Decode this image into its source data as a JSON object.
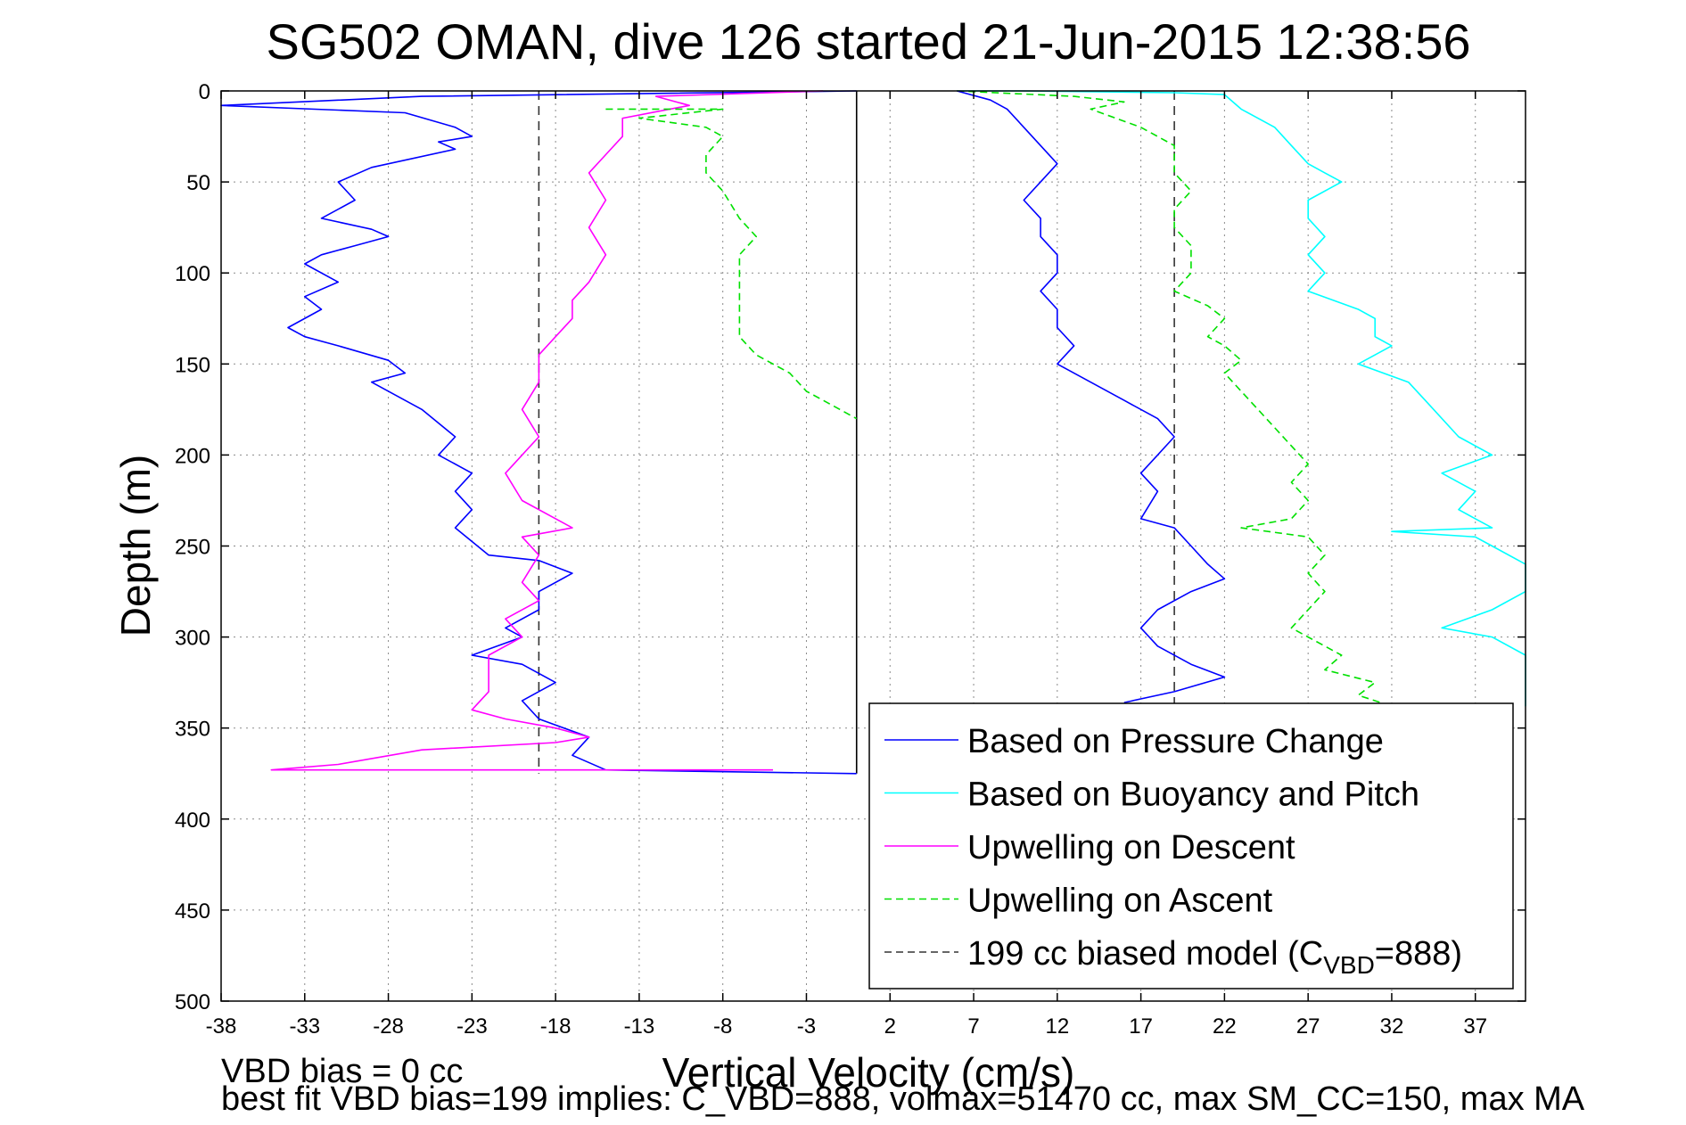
{
  "chart_data": {
    "type": "line",
    "title": "SG502 OMAN, dive 126 started 21-Jun-2015 12:38:56",
    "xlabel": "Vertical Velocity (cm/s)",
    "ylabel": "Depth (m)",
    "xlim": [
      -38,
      40
    ],
    "ylim": [
      500,
      0
    ],
    "y_axis_direction": "reversed",
    "xticks": [
      -38,
      -33,
      -28,
      -23,
      -18,
      -13,
      -8,
      -3,
      2,
      7,
      12,
      17,
      22,
      27,
      32,
      37
    ],
    "xtick_labels": [
      "-38",
      "-33",
      "-28",
      "-23",
      "-18",
      "-13",
      "-8",
      "-3",
      "2",
      "7",
      "12",
      "17",
      "22",
      "27",
      "32",
      "37"
    ],
    "yticks": [
      0,
      50,
      100,
      150,
      200,
      250,
      300,
      350,
      400,
      450,
      500
    ],
    "ytick_labels": [
      "0",
      "50",
      "100",
      "150",
      "200",
      "250",
      "300",
      "350",
      "400",
      "450",
      "500"
    ],
    "grid": true,
    "legend_position": "bottom-right",
    "reference_lines": [
      {
        "kind": "vertical",
        "x": 0,
        "style": "solid",
        "color": "#000000",
        "ymax": 375
      },
      {
        "kind": "vertical",
        "x": -19,
        "style": "dashed",
        "color": "#333333",
        "ymax": 375
      },
      {
        "kind": "vertical",
        "x": 19,
        "style": "dashed",
        "color": "#333333",
        "ymax": 375
      }
    ],
    "series": [
      {
        "name": "Based on Pressure Change",
        "color": "#0000ff",
        "style": "solid",
        "points": [
          [
            0,
            0
          ],
          [
            -26,
            3
          ],
          [
            -38,
            8
          ],
          [
            -27,
            12
          ],
          [
            -24,
            20
          ],
          [
            -23,
            25
          ],
          [
            -25,
            28
          ],
          [
            -24,
            32
          ],
          [
            -29,
            42
          ],
          [
            -31,
            50
          ],
          [
            -30,
            60
          ],
          [
            -32,
            70
          ],
          [
            -29,
            76
          ],
          [
            -28,
            80
          ],
          [
            -30,
            85
          ],
          [
            -32,
            90
          ],
          [
            -33,
            95
          ],
          [
            -31,
            105
          ],
          [
            -33,
            113
          ],
          [
            -32,
            120
          ],
          [
            -34,
            130
          ],
          [
            -33,
            135
          ],
          [
            -31,
            140
          ],
          [
            -28,
            148
          ],
          [
            -27,
            155
          ],
          [
            -29,
            160
          ],
          [
            -26,
            175
          ],
          [
            -24,
            190
          ],
          [
            -25,
            200
          ],
          [
            -23,
            210
          ],
          [
            -24,
            220
          ],
          [
            -23,
            230
          ],
          [
            -24,
            240
          ],
          [
            -22,
            255
          ],
          [
            -19,
            258
          ],
          [
            -17,
            265
          ],
          [
            -19,
            275
          ],
          [
            -19,
            285
          ],
          [
            -21,
            295
          ],
          [
            -20,
            300
          ],
          [
            -23,
            310
          ],
          [
            -20,
            315
          ],
          [
            -18,
            325
          ],
          [
            -20,
            335
          ],
          [
            -19,
            345
          ],
          [
            -16,
            355
          ],
          [
            -17,
            365
          ],
          [
            -15,
            373
          ],
          [
            0,
            375
          ]
        ]
      },
      {
        "name": "Based on Buoyancy and Pitch",
        "color": "#00ffff",
        "style": "solid",
        "points": [
          [
            6,
            0
          ],
          [
            10,
            0
          ],
          [
            19,
            1
          ],
          [
            22,
            2
          ],
          [
            23,
            10
          ],
          [
            25,
            20
          ],
          [
            26,
            30
          ],
          [
            27,
            40
          ],
          [
            28,
            45
          ],
          [
            29,
            50
          ],
          [
            27,
            60
          ],
          [
            27,
            70
          ],
          [
            28,
            80
          ],
          [
            27,
            90
          ],
          [
            28,
            100
          ],
          [
            27,
            110
          ],
          [
            30,
            120
          ],
          [
            31,
            125
          ],
          [
            31,
            135
          ],
          [
            32,
            140
          ],
          [
            30,
            150
          ],
          [
            33,
            160
          ],
          [
            34,
            170
          ],
          [
            36,
            190
          ],
          [
            38,
            200
          ],
          [
            35,
            210
          ],
          [
            37,
            220
          ],
          [
            36,
            230
          ],
          [
            37,
            235
          ],
          [
            38,
            240
          ],
          [
            32,
            242
          ],
          [
            37,
            245
          ],
          [
            38,
            250
          ],
          [
            40,
            260
          ],
          [
            40,
            275
          ],
          [
            38,
            285
          ],
          [
            35,
            295
          ],
          [
            38,
            300
          ],
          [
            40,
            310
          ],
          [
            40,
            325
          ],
          [
            40,
            338
          ]
        ]
      },
      {
        "name": "Upwelling on Descent",
        "color": "#ff00ff",
        "style": "solid",
        "points": [
          [
            -2,
            0
          ],
          [
            -12,
            3
          ],
          [
            -10,
            8
          ],
          [
            -14,
            15
          ],
          [
            -14,
            25
          ],
          [
            -15,
            35
          ],
          [
            -16,
            45
          ],
          [
            -15,
            60
          ],
          [
            -16,
            75
          ],
          [
            -15,
            90
          ],
          [
            -16,
            105
          ],
          [
            -17,
            115
          ],
          [
            -17,
            125
          ],
          [
            -18,
            135
          ],
          [
            -19,
            145
          ],
          [
            -19,
            160
          ],
          [
            -20,
            175
          ],
          [
            -19,
            190
          ],
          [
            -20,
            200
          ],
          [
            -21,
            210
          ],
          [
            -20,
            225
          ],
          [
            -17,
            240
          ],
          [
            -20,
            245
          ],
          [
            -19,
            255
          ],
          [
            -20,
            270
          ],
          [
            -19,
            280
          ],
          [
            -21,
            290
          ],
          [
            -20,
            300
          ],
          [
            -22,
            310
          ],
          [
            -22,
            320
          ],
          [
            -22,
            330
          ],
          [
            -23,
            340
          ],
          [
            -21,
            345
          ],
          [
            -18,
            350
          ],
          [
            -16,
            355
          ],
          [
            -18,
            358
          ],
          [
            -26,
            362
          ],
          [
            -31,
            370
          ],
          [
            -35,
            373
          ],
          [
            -5,
            373
          ]
        ]
      },
      {
        "name": "Upwelling on Ascent",
        "color": "#00e000",
        "style": "dashed",
        "points": [
          [
            -15,
            10
          ],
          [
            -8,
            10
          ],
          [
            -13,
            15
          ],
          [
            -9,
            20
          ],
          [
            -8,
            25
          ],
          [
            -9,
            35
          ],
          [
            -9,
            45
          ],
          [
            -8,
            55
          ],
          [
            -7,
            70
          ],
          [
            -6,
            80
          ],
          [
            -7,
            90
          ],
          [
            -7,
            100
          ],
          [
            -7,
            115
          ],
          [
            -7,
            125
          ],
          [
            -7,
            135
          ],
          [
            -6,
            145
          ],
          [
            -4,
            155
          ],
          [
            -3,
            165
          ],
          [
            -1,
            175
          ],
          [
            0,
            180
          ]
        ]
      },
      {
        "name": "Upwelling on Ascent",
        "color": "#00e000",
        "style": "dashed",
        "points": [
          [
            6,
            0
          ],
          [
            13,
            3
          ],
          [
            16,
            6
          ],
          [
            14,
            10
          ],
          [
            17,
            20
          ],
          [
            19,
            30
          ],
          [
            19,
            45
          ],
          [
            20,
            55
          ],
          [
            19,
            65
          ],
          [
            19,
            75
          ],
          [
            20,
            85
          ],
          [
            20,
            100
          ],
          [
            19,
            110
          ],
          [
            21,
            118
          ],
          [
            22,
            125
          ],
          [
            21,
            135
          ],
          [
            22,
            140
          ],
          [
            23,
            148
          ],
          [
            22,
            155
          ],
          [
            23,
            165
          ],
          [
            24,
            175
          ],
          [
            25,
            185
          ],
          [
            26,
            195
          ],
          [
            27,
            205
          ],
          [
            26,
            215
          ],
          [
            27,
            225
          ],
          [
            26,
            235
          ],
          [
            23,
            240
          ],
          [
            27,
            245
          ],
          [
            28,
            255
          ],
          [
            27,
            265
          ],
          [
            28,
            275
          ],
          [
            27,
            285
          ],
          [
            26,
            295
          ],
          [
            28,
            305
          ],
          [
            29,
            310
          ],
          [
            28,
            318
          ],
          [
            31,
            325
          ],
          [
            30,
            332
          ],
          [
            32,
            338
          ]
        ]
      },
      {
        "name": "Based on Pressure Change",
        "color": "#0000ff",
        "style": "solid",
        "points": [
          [
            6,
            0
          ],
          [
            8,
            5
          ],
          [
            9,
            10
          ],
          [
            10,
            20
          ],
          [
            11,
            30
          ],
          [
            12,
            40
          ],
          [
            11,
            50
          ],
          [
            10,
            60
          ],
          [
            11,
            70
          ],
          [
            11,
            80
          ],
          [
            12,
            90
          ],
          [
            12,
            100
          ],
          [
            11,
            110
          ],
          [
            12,
            120
          ],
          [
            12,
            130
          ],
          [
            13,
            140
          ],
          [
            12,
            150
          ],
          [
            14,
            160
          ],
          [
            16,
            170
          ],
          [
            18,
            180
          ],
          [
            19,
            190
          ],
          [
            18,
            200
          ],
          [
            17,
            210
          ],
          [
            18,
            220
          ],
          [
            17,
            235
          ],
          [
            19,
            240
          ],
          [
            20,
            250
          ],
          [
            21,
            260
          ],
          [
            22,
            268
          ],
          [
            20,
            275
          ],
          [
            18,
            285
          ],
          [
            17,
            295
          ],
          [
            18,
            305
          ],
          [
            20,
            315
          ],
          [
            22,
            322
          ],
          [
            19,
            330
          ],
          [
            16,
            336
          ]
        ]
      }
    ],
    "legend": [
      {
        "label": "Based on Pressure Change",
        "color": "#0000ff",
        "style": "solid"
      },
      {
        "label": "Based on Buoyancy and Pitch",
        "color": "#00ffff",
        "style": "solid"
      },
      {
        "label": "Upwelling on Descent",
        "color": "#ff00ff",
        "style": "solid"
      },
      {
        "label": "Upwelling on Ascent",
        "color": "#00e000",
        "style": "dashed"
      },
      {
        "label": "199 cc biased model (C",
        "sub": "VBD",
        "suffix": "=888)",
        "color": "#333333",
        "style": "dashed"
      }
    ],
    "annotations": {
      "bias": "VBD bias = 0 cc",
      "fit": "best fit VBD bias=199 implies: C_VBD=888, volmax=51470 cc, max SM_CC=150, max MA"
    }
  }
}
